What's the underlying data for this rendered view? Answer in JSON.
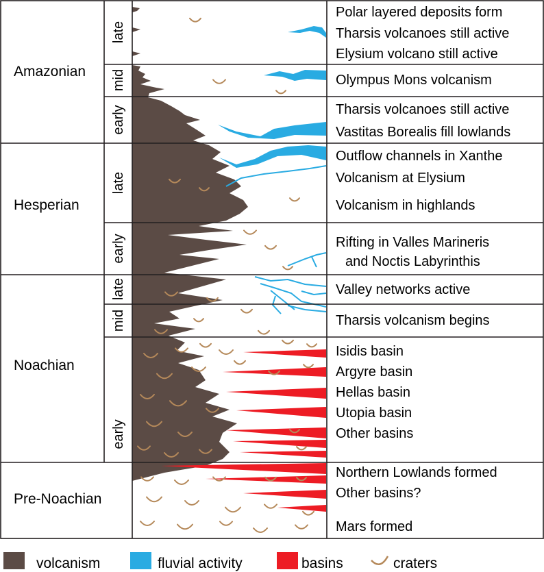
{
  "eras": [
    {
      "id": "amazonian",
      "label": "Amazonian"
    },
    {
      "id": "hesperian",
      "label": "Hesperian"
    },
    {
      "id": "noachian",
      "label": "Noachian"
    },
    {
      "id": "pre_noachian",
      "label": "Pre-Noachian"
    }
  ],
  "sub_periods": [
    {
      "id": "amazonian_late",
      "label": "late"
    },
    {
      "id": "amazonian_mid",
      "label": "mid"
    },
    {
      "id": "amazonian_early",
      "label": "early"
    },
    {
      "id": "hesperian_late",
      "label": "late"
    },
    {
      "id": "hesperian_early",
      "label": "early"
    },
    {
      "id": "noachian_late",
      "label": "late"
    },
    {
      "id": "noachian_mid",
      "label": "mid"
    },
    {
      "id": "noachian_early",
      "label": "early"
    }
  ],
  "events": [
    "Polar layered deposits form",
    "Tharsis volcanoes still active",
    "Elysium volcano still active",
    "Olympus Mons volcanism",
    "Tharsis volcanoes still active",
    "Vastitas Borealis fill lowlands",
    "Outflow channels in Xanthe",
    "Volcanism at Elysium",
    "Volcanism in highlands",
    "Rifting in Valles Marineris",
    "and Noctis Labyrinthis",
    "Valley networks active",
    "Tharsis volcanism begins",
    "Isidis basin",
    "Argyre basin",
    "Hellas basin",
    "Utopia basin",
    "Other basins",
    "Northern Lowlands formed",
    "Other basins?",
    "Mars formed"
  ],
  "legend": [
    {
      "label": "volcanism",
      "color": "#5b4b45",
      "icon": "square"
    },
    {
      "label": "fluvial activity",
      "color": "#29abe2",
      "icon": "square"
    },
    {
      "label": "basins",
      "color": "#ed1c24",
      "icon": "square"
    },
    {
      "label": "craters",
      "color": "#b5895a",
      "icon": "crater-arc"
    }
  ],
  "colors": {
    "volcanism": "#5b4b45",
    "fluvial": "#29abe2",
    "basins": "#ed1c24",
    "craters": "#b5895a",
    "lines": "#231f20"
  }
}
